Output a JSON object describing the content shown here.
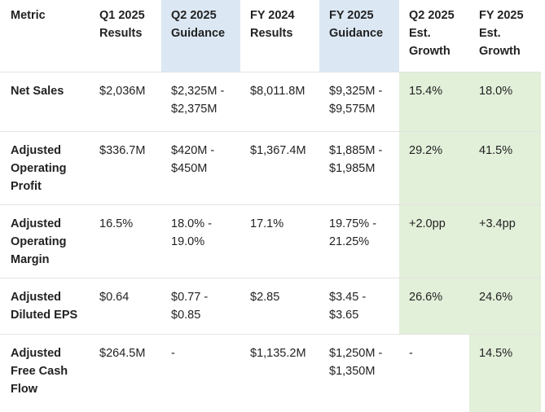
{
  "colors": {
    "guidance_header": "#dbe8f4",
    "growth_fill": "#e2efd9"
  },
  "headers": [
    "Metric",
    "Q1 2025 Results",
    "Q2 2025 Guidance",
    "FY 2024 Results",
    "FY 2025 Guidance",
    "Q2 2025 Est. Growth",
    "FY 2025 Est. Growth"
  ],
  "rows": [
    [
      "Net Sales",
      "$2,036M",
      "$2,325M - $2,375M",
      "$8,011.8M",
      "$9,325M - $9,575M",
      "15.4%",
      "18.0%"
    ],
    [
      "Adjusted Operating Profit",
      "$336.7M",
      "$420M - $450M",
      "$1,367.4M",
      "$1,885M - $1,985M",
      "29.2%",
      "41.5%"
    ],
    [
      "Adjusted Operating Margin",
      "16.5%",
      "18.0% - 19.0%",
      "17.1%",
      "19.75% - 21.25%",
      "+2.0pp",
      "+3.4pp"
    ],
    [
      "Adjusted Diluted EPS",
      "$0.64",
      "$0.77 - $0.85",
      "$2.85",
      "$3.45 - $3.65",
      "26.6%",
      "24.6%"
    ],
    [
      "Adjusted Free Cash Flow",
      "$264.5M",
      "-",
      "$1,135.2M",
      "$1,250M - $1,350M",
      "-",
      "14.5%"
    ]
  ]
}
